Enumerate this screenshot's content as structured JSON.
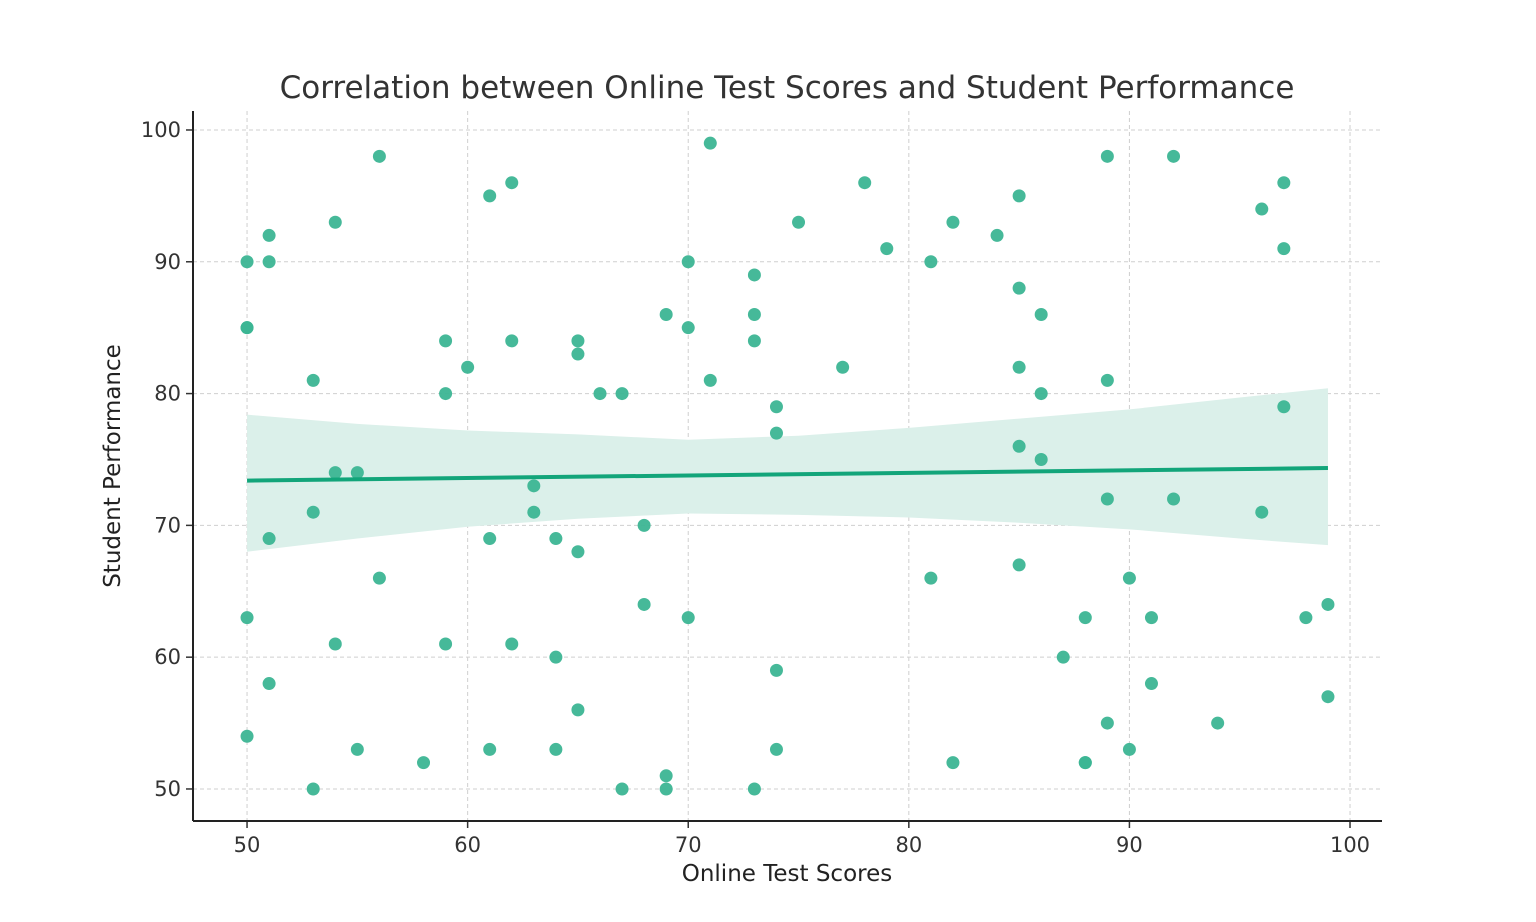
{
  "chart_data": {
    "type": "scatter",
    "title": "Correlation between Online Test Scores and Student Performance",
    "xlabel": "Online Test Scores",
    "ylabel": "Student Performance",
    "xlim": [
      47.55,
      101.45
    ],
    "ylim": [
      47.57,
      101.44
    ],
    "xticks": [
      50,
      60,
      70,
      80,
      90,
      100
    ],
    "yticks": [
      50,
      60,
      70,
      80,
      90,
      100
    ],
    "grid": true,
    "point_color": "#3cb593",
    "line_color": "#12a57a",
    "band_color": "#dbf0ea",
    "points": [
      [
        50,
        90
      ],
      [
        50,
        85
      ],
      [
        50,
        85
      ],
      [
        50,
        63
      ],
      [
        50,
        54
      ],
      [
        51,
        92
      ],
      [
        51,
        90
      ],
      [
        51,
        69
      ],
      [
        51,
        58
      ],
      [
        53,
        81
      ],
      [
        53,
        71
      ],
      [
        53,
        50
      ],
      [
        54,
        93
      ],
      [
        54,
        74
      ],
      [
        54,
        61
      ],
      [
        55,
        74
      ],
      [
        55,
        53
      ],
      [
        56,
        98
      ],
      [
        56,
        66
      ],
      [
        58,
        52
      ],
      [
        59,
        84
      ],
      [
        59,
        80
      ],
      [
        59,
        61
      ],
      [
        60,
        82
      ],
      [
        61,
        95
      ],
      [
        61,
        69
      ],
      [
        61,
        53
      ],
      [
        62,
        96
      ],
      [
        62,
        84
      ],
      [
        62,
        61
      ],
      [
        63,
        73
      ],
      [
        63,
        71
      ],
      [
        64,
        69
      ],
      [
        64,
        60
      ],
      [
        64,
        53
      ],
      [
        65,
        84
      ],
      [
        65,
        83
      ],
      [
        65,
        68
      ],
      [
        65,
        56
      ],
      [
        66,
        80
      ],
      [
        67,
        80
      ],
      [
        67,
        50
      ],
      [
        68,
        70
      ],
      [
        68,
        64
      ],
      [
        69,
        86
      ],
      [
        69,
        51
      ],
      [
        69,
        50
      ],
      [
        70,
        90
      ],
      [
        70,
        85
      ],
      [
        70,
        63
      ],
      [
        71,
        99
      ],
      [
        71,
        81
      ],
      [
        73,
        89
      ],
      [
        73,
        86
      ],
      [
        73,
        84
      ],
      [
        73,
        50
      ],
      [
        74,
        79
      ],
      [
        74,
        77
      ],
      [
        74,
        59
      ],
      [
        74,
        53
      ],
      [
        75,
        93
      ],
      [
        77,
        82
      ],
      [
        78,
        96
      ],
      [
        79,
        91
      ],
      [
        81,
        90
      ],
      [
        81,
        66
      ],
      [
        82,
        93
      ],
      [
        82,
        52
      ],
      [
        84,
        92
      ],
      [
        85,
        95
      ],
      [
        85,
        88
      ],
      [
        85,
        82
      ],
      [
        85,
        76
      ],
      [
        85,
        67
      ],
      [
        86,
        86
      ],
      [
        86,
        80
      ],
      [
        86,
        75
      ],
      [
        87,
        60
      ],
      [
        88,
        63
      ],
      [
        88,
        52
      ],
      [
        88,
        52
      ],
      [
        89,
        98
      ],
      [
        89,
        81
      ],
      [
        89,
        72
      ],
      [
        89,
        55
      ],
      [
        90,
        66
      ],
      [
        90,
        53
      ],
      [
        91,
        63
      ],
      [
        91,
        58
      ],
      [
        92,
        98
      ],
      [
        92,
        72
      ],
      [
        94,
        55
      ],
      [
        96,
        94
      ],
      [
        96,
        71
      ],
      [
        97,
        96
      ],
      [
        97,
        91
      ],
      [
        97,
        79
      ],
      [
        98,
        63
      ],
      [
        99,
        64
      ],
      [
        99,
        57
      ]
    ],
    "regression": {
      "x": [
        50,
        99
      ],
      "y": [
        73.4,
        74.35
      ]
    },
    "confidence_band": {
      "x": [
        50,
        55,
        60,
        65,
        70,
        75,
        80,
        85,
        90,
        95,
        99
      ],
      "lower": [
        68.0,
        69.0,
        69.9,
        70.5,
        70.9,
        70.8,
        70.6,
        70.2,
        69.7,
        69.0,
        68.5
      ],
      "upper": [
        78.4,
        77.7,
        77.2,
        76.9,
        76.5,
        76.8,
        77.4,
        78.1,
        78.8,
        79.7,
        80.4
      ]
    }
  }
}
